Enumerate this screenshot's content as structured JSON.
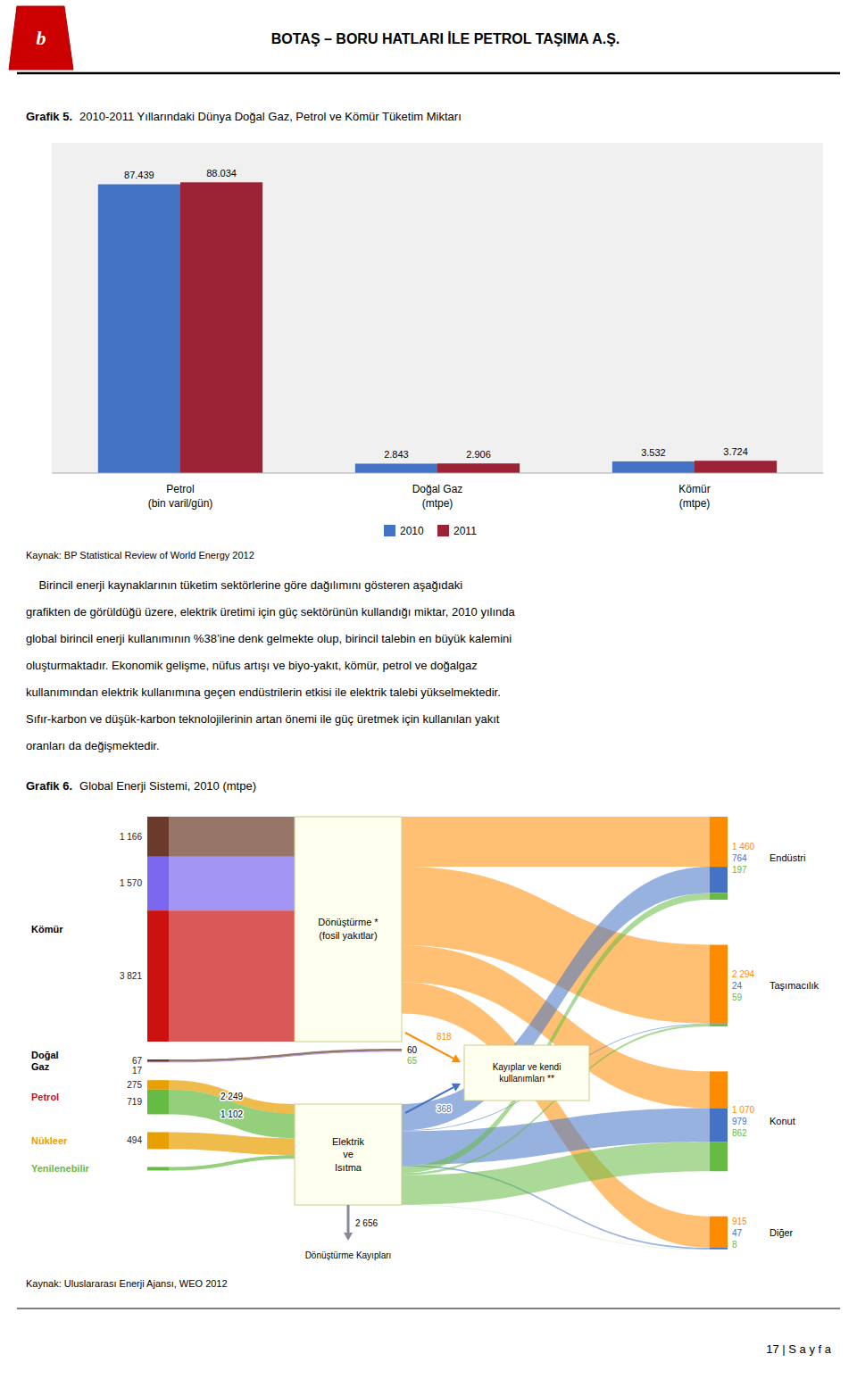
{
  "page": {
    "title": "BOTAŞ – BORU HATLARI İLE PETROL TAŞIMA A.Ş.",
    "logo_text": "b",
    "body_text": [
      "    Birincil enerji kaynaklarının tüketim sektörlerine göre dağılımını gösteren aşağıdaki",
      "grafikten de görüldüğü üzere, elektrik üretimi için güç sektörünün kullandığı miktar, 2010 yılında",
      "global birincil enerji kullanımının %38’ine denk gelmekte olup, birincil talebin en büyük kalemini",
      "oluşturmaktadır. Ekonomik gelişme, nüfus artışı ve biyo-yakıt, kömür, petrol ve doğalgaz",
      "kullanımından elektrik kullanımına geçen endüstrilerin etkisi ile elektrik talebi yükselmektedir.",
      "Sıfır-karbon ve düşük-karbon teknolojilerinin artan önemi ile güç üretmek için kullanılan yakıt",
      "oranları da değişmektedir."
    ],
    "page_number": "17 | S a y f a"
  },
  "chart_data": [
    {
      "type": "bar",
      "title": "Grafik 5.",
      "subtitle": "2010-2011 Yıllarındaki Dünya Doğal Gaz, Petrol ve Kömür Tüketim Miktarı",
      "categories": [
        "Petrol\n(bin varil/gün)",
        "Doğal Gaz\n(mtpe)",
        "Kömür\n(mtpe)"
      ],
      "series": [
        {
          "name": "2010",
          "color": "#4472C4",
          "values": [
            87.439,
            2.843,
            3.532
          ]
        },
        {
          "name": "2011",
          "color": "#9B2335",
          "values": [
            88.034,
            2.906,
            3.724
          ]
        }
      ],
      "ylim": [
        0,
        100
      ],
      "data_labels": true,
      "tick_labels": "x",
      "legend": "bottom",
      "grid": false,
      "source": "Kaynak: BP Statistical Review of World Energy 2012"
    },
    {
      "type": "sankey",
      "title": "Grafik 6.",
      "subtitle": "Global Enerji Sistemi, 2010 (mtpe)",
      "sources": {
        "names": [
          "Kömür",
          "Doğal\nGaz",
          "Petrol",
          "Nükleer",
          "Yenilenebilir"
        ],
        "colors": [
          "#000000",
          "#000000",
          "#CC1111",
          "#E8A000",
          "#66BB44"
        ]
      },
      "nodes": {
        "names": [
          "Dönüştürme *\n(fosil yakıtlar)",
          "Elektrik\nve\nIsıtma",
          "Kayıplar ve kendi\nkullanımları **"
        ]
      },
      "inputs": {
        "source": [
          0,
          0,
          0,
          1,
          1,
          2,
          2,
          3,
          4
        ],
        "target": [
          0,
          0,
          0,
          null,
          null,
          1,
          1,
          1,
          1
        ],
        "colors": [
          "#6B3A2A",
          "#7B68EE",
          "#CC1111",
          "#6B3A2A",
          "#7B68EE",
          "#E8A000",
          "#66BB44",
          "#E8A000",
          "#66BB44"
        ],
        "values": [
          1166,
          1570,
          3821,
          67,
          17,
          275,
          719,
          494,
          null
        ],
        "value_labels": [
          "1 166",
          "1 570",
          "3 821",
          "67",
          "17",
          "275",
          "719",
          "494",
          null
        ],
        "flow_values": [
          null,
          null,
          null,
          60,
          65,
          2249,
          1102,
          null,
          null
        ],
        "flow_value_labels": [
          null,
          null,
          null,
          "60",
          "65",
          "2 249",
          "1 102",
          null,
          null
        ],
        "flow_label_colors": [
          null,
          null,
          null,
          "#000000",
          "#66BB44",
          "#000000",
          "#000000",
          null,
          null
        ]
      },
      "transfers": {
        "from": [
          0,
          1,
          1
        ],
        "to": [
          2,
          2,
          null
        ],
        "colors": [
          "#FF8C00",
          "#4472C4",
          "#888899"
        ],
        "values": [
          818,
          368,
          2656
        ],
        "value_labels": [
          "818",
          "368",
          "2 656"
        ]
      },
      "loss_label": "Dönüştürme Kayıpları",
      "sectors": {
        "names": [
          "Endüstri",
          "Taşımacılık",
          "Konut",
          "Diğer"
        ],
        "series": [
          {
            "from": 0,
            "color": "#FF8C00",
            "values": [
              1460,
              2294,
              1070,
              915
            ],
            "value_labels": [
              "1 460",
              "2 294",
              "1 070",
              "915"
            ]
          },
          {
            "from": 1,
            "color": "#4472C4",
            "values": [
              764,
              24,
              979,
              47
            ]
          },
          {
            "from": 1,
            "color": "#66BB44",
            "values": [
              197,
              59,
              862,
              8
            ]
          }
        ]
      },
      "source": "Kaynak: Uluslararası Enerji Ajansı, WEO 2012"
    }
  ]
}
